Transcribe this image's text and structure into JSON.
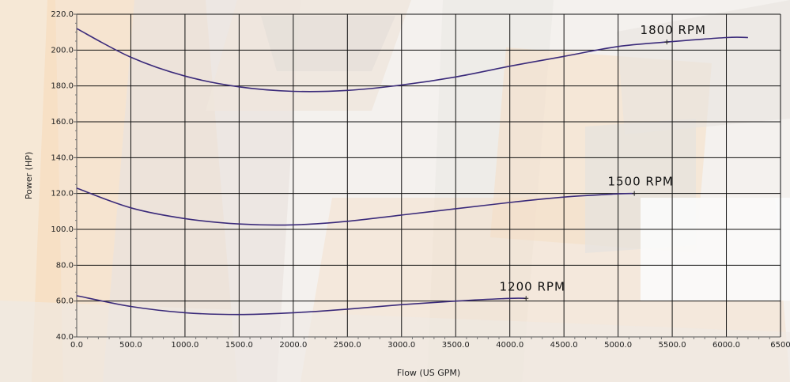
{
  "chart_data": {
    "type": "line",
    "title": "",
    "xlabel": "Flow (US GPM)",
    "ylabel": "Power (HP)",
    "xlim": [
      0,
      6500
    ],
    "ylim": [
      40,
      220
    ],
    "x_ticks": [
      "0.0",
      "500.0",
      "1000.0",
      "1500.0",
      "2000.0",
      "2500.0",
      "3000.0",
      "3500.0",
      "4000.0",
      "4500.0",
      "5000.0",
      "5500.0",
      "6000.0",
      "6500"
    ],
    "y_ticks": [
      "40.0",
      "60.0",
      "80.0",
      "100.0",
      "120.0",
      "140.0",
      "160.0",
      "180.0",
      "200.0",
      "220.0"
    ],
    "grid": true,
    "line_color": "#3a2a7a",
    "series": [
      {
        "name": "1800 RPM",
        "end_marker_x": 5450,
        "points": [
          [
            0,
            212
          ],
          [
            500,
            196
          ],
          [
            1000,
            185.5
          ],
          [
            1500,
            179.5
          ],
          [
            2000,
            177
          ],
          [
            2500,
            177.5
          ],
          [
            3000,
            180.5
          ],
          [
            3500,
            185
          ],
          [
            4000,
            191
          ],
          [
            4500,
            196.5
          ],
          [
            5000,
            202
          ],
          [
            5450,
            204.5
          ],
          [
            6000,
            207
          ],
          [
            6200,
            207
          ]
        ]
      },
      {
        "name": "1500 RPM",
        "end_marker_x": 5150,
        "points": [
          [
            0,
            123
          ],
          [
            500,
            112
          ],
          [
            1000,
            106
          ],
          [
            1500,
            103
          ],
          [
            2000,
            102.5
          ],
          [
            2500,
            104.5
          ],
          [
            3000,
            108
          ],
          [
            3500,
            111.5
          ],
          [
            4000,
            115
          ],
          [
            4500,
            118
          ],
          [
            5000,
            119.8
          ],
          [
            5150,
            120
          ]
        ]
      },
      {
        "name": "1200 RPM",
        "end_marker_x": 4150,
        "points": [
          [
            0,
            63
          ],
          [
            500,
            57
          ],
          [
            1000,
            53.5
          ],
          [
            1500,
            52.5
          ],
          [
            2000,
            53.5
          ],
          [
            2500,
            55.5
          ],
          [
            3000,
            58
          ],
          [
            3500,
            60
          ],
          [
            4000,
            61.5
          ],
          [
            4150,
            61.5
          ]
        ]
      }
    ]
  }
}
